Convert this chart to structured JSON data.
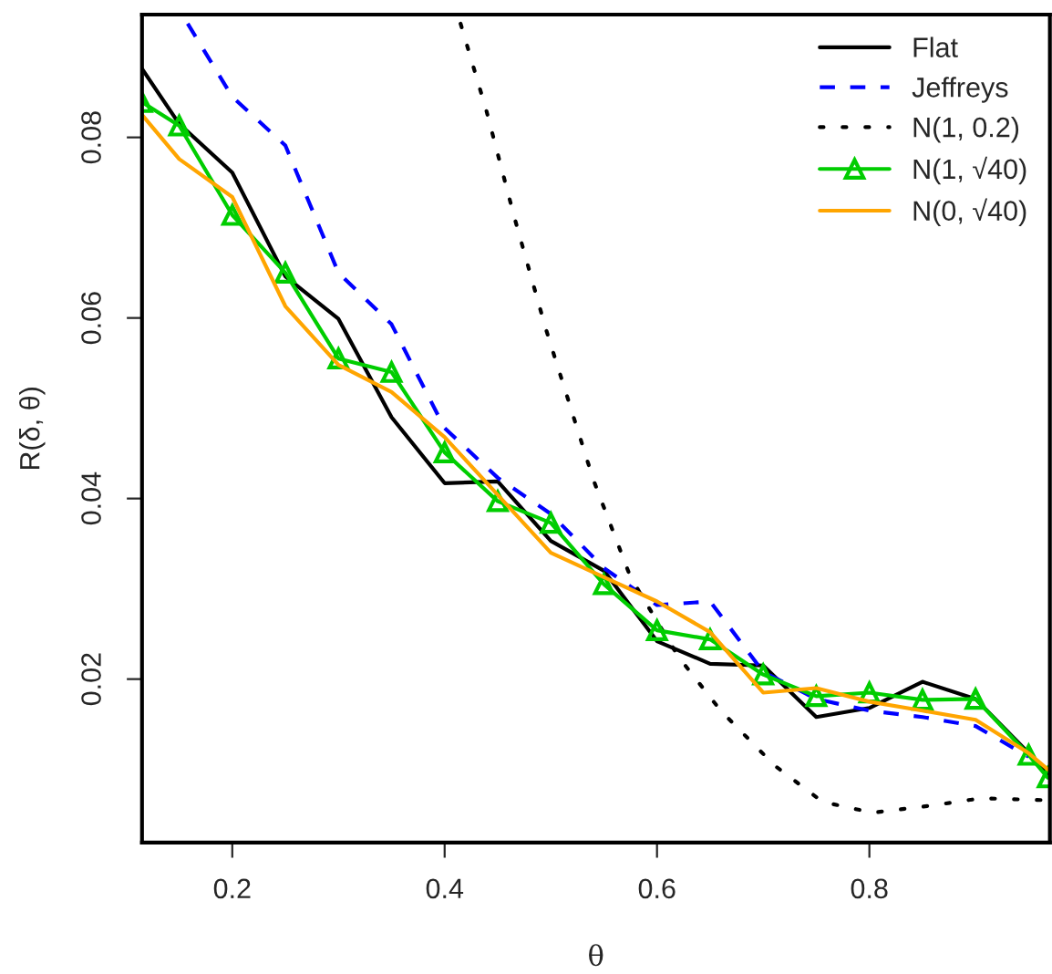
{
  "chart_data": {
    "type": "line",
    "xlabel": "θ",
    "ylabel": "R(δ, θ)",
    "xlim": [
      0.115,
      0.97
    ],
    "ylim": [
      0.0019,
      0.0936
    ],
    "xticks": [
      0.2,
      0.4,
      0.6,
      0.8
    ],
    "yticks": [
      0.02,
      0.04,
      0.06,
      0.08
    ],
    "grid": false,
    "legend": "top right",
    "series": [
      {
        "name": "Flat",
        "color": "#000000",
        "line_style": "solid",
        "marker": "none",
        "x": [
          0.115,
          0.15,
          0.2,
          0.25,
          0.3,
          0.35,
          0.4,
          0.45,
          0.5,
          0.55,
          0.6,
          0.65,
          0.7,
          0.75,
          0.8,
          0.85,
          0.9,
          0.95,
          0.968
        ],
        "values": [
          0.0876,
          0.0815,
          0.0761,
          0.0646,
          0.0599,
          0.049,
          0.0417,
          0.0419,
          0.0353,
          0.032,
          0.0242,
          0.0217,
          0.0215,
          0.0158,
          0.0168,
          0.0197,
          0.0178,
          0.0118,
          0.0094
        ]
      },
      {
        "name": "Jeffreys",
        "color": "#0000ff",
        "line_style": "dashed",
        "marker": "none",
        "x": [
          0.158,
          0.2,
          0.25,
          0.3,
          0.35,
          0.4,
          0.45,
          0.5,
          0.55,
          0.6,
          0.65,
          0.7,
          0.75,
          0.8,
          0.85,
          0.9,
          0.95
        ],
        "values": [
          0.0926,
          0.0845,
          0.0791,
          0.065,
          0.0593,
          0.0478,
          0.0423,
          0.0383,
          0.0323,
          0.0282,
          0.0286,
          0.0208,
          0.0178,
          0.0165,
          0.0158,
          0.0148,
          0.0114
        ]
      },
      {
        "name": "N(1, 0.2)",
        "color": "#000000",
        "line_style": "dotted",
        "marker": "none",
        "x": [
          0.415,
          0.439,
          0.466,
          0.495,
          0.54,
          0.575,
          0.62,
          0.66,
          0.711,
          0.756,
          0.803,
          0.859,
          0.905,
          0.962
        ],
        "values": [
          0.0926,
          0.0831,
          0.071,
          0.0589,
          0.0421,
          0.0313,
          0.0225,
          0.0165,
          0.0104,
          0.0064,
          0.0052,
          0.006,
          0.0068,
          0.0066
        ]
      },
      {
        "name": "N(1, √40)",
        "color": "#00cd00",
        "line_style": "solid",
        "marker": "triangle",
        "x": [
          0.115,
          0.15,
          0.2,
          0.25,
          0.3,
          0.35,
          0.4,
          0.45,
          0.5,
          0.55,
          0.6,
          0.65,
          0.7,
          0.75,
          0.8,
          0.85,
          0.9,
          0.95,
          0.968
        ],
        "values": [
          0.0839,
          0.0813,
          0.0714,
          0.065,
          0.0555,
          0.054,
          0.0451,
          0.0397,
          0.0373,
          0.0305,
          0.0254,
          0.0244,
          0.0205,
          0.0181,
          0.0185,
          0.0177,
          0.0178,
          0.0116,
          0.0091
        ]
      },
      {
        "name": "N(0, √40)",
        "color": "#ffa500",
        "line_style": "solid",
        "marker": "none",
        "x": [
          0.115,
          0.15,
          0.2,
          0.25,
          0.3,
          0.35,
          0.4,
          0.45,
          0.5,
          0.55,
          0.6,
          0.65,
          0.7,
          0.75,
          0.8,
          0.85,
          0.9,
          0.95,
          0.968
        ],
        "values": [
          0.0825,
          0.0776,
          0.0734,
          0.0613,
          0.0548,
          0.0518,
          0.0468,
          0.0404,
          0.034,
          0.0313,
          0.0286,
          0.0252,
          0.0185,
          0.019,
          0.0175,
          0.0165,
          0.0155,
          0.0118,
          0.01
        ]
      }
    ]
  }
}
